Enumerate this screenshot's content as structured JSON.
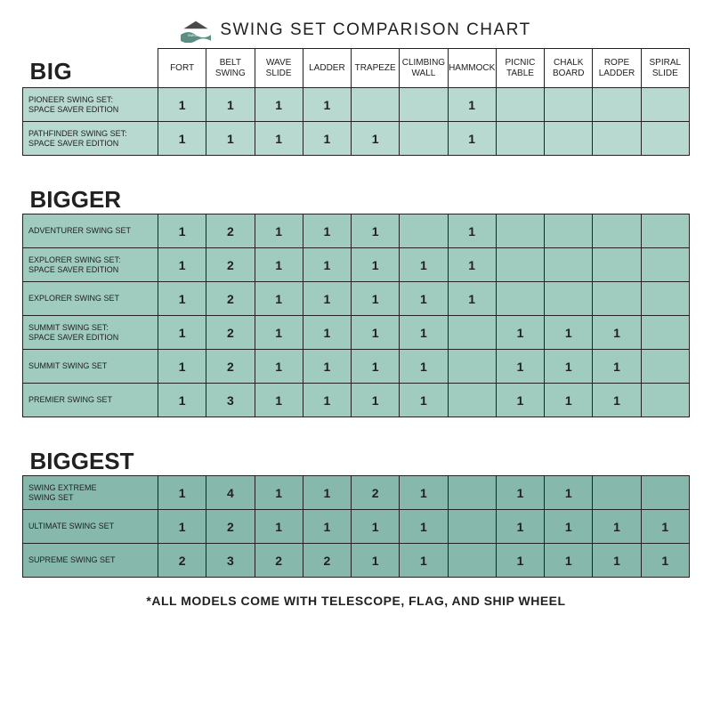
{
  "title": "SWING SET COMPARISON CHART",
  "footnote": "*ALL MODELS COME WITH TELESCOPE, FLAG, AND SHIP WHEEL",
  "columns": [
    "FORT",
    "BELT SWING",
    "WAVE SLIDE",
    "LADDER",
    "TRAPEZE",
    "CLIMBING WALL",
    "HAMMOCK",
    "PICNIC TABLE",
    "CHALK BOARD",
    "ROPE LADDER",
    "SPIRAL SLIDE"
  ],
  "sections": [
    {
      "label": "BIG",
      "row_bg": "#b8d9cf",
      "rows": [
        {
          "name": "PIONEER SWING SET: SPACE SAVER EDITION",
          "vals": [
            "1",
            "1",
            "1",
            "1",
            "",
            "",
            "1",
            "",
            "",
            "",
            ""
          ]
        },
        {
          "name": "PATHFINDER SWING SET: SPACE SAVER EDITION",
          "vals": [
            "1",
            "1",
            "1",
            "1",
            "1",
            "",
            "1",
            "",
            "",
            "",
            ""
          ]
        }
      ]
    },
    {
      "label": "BIGGER",
      "row_bg": "#a0ccc0",
      "rows": [
        {
          "name": "ADVENTURER SWING SET",
          "vals": [
            "1",
            "2",
            "1",
            "1",
            "1",
            "",
            "1",
            "",
            "",
            "",
            ""
          ]
        },
        {
          "name": "EXPLORER SWING SET: SPACE SAVER EDITION",
          "vals": [
            "1",
            "2",
            "1",
            "1",
            "1",
            "1",
            "1",
            "",
            "",
            "",
            ""
          ]
        },
        {
          "name": "EXPLORER SWING SET",
          "vals": [
            "1",
            "2",
            "1",
            "1",
            "1",
            "1",
            "1",
            "",
            "",
            "",
            ""
          ]
        },
        {
          "name": "SUMMIT SWING SET: SPACE SAVER EDITION",
          "vals": [
            "1",
            "2",
            "1",
            "1",
            "1",
            "1",
            "",
            "1",
            "1",
            "1",
            ""
          ]
        },
        {
          "name": "SUMMIT SWING SET",
          "vals": [
            "1",
            "2",
            "1",
            "1",
            "1",
            "1",
            "",
            "1",
            "1",
            "1",
            ""
          ]
        },
        {
          "name": "PREMIER SWING SET",
          "vals": [
            "1",
            "3",
            "1",
            "1",
            "1",
            "1",
            "",
            "1",
            "1",
            "1",
            ""
          ]
        }
      ]
    },
    {
      "label": "BIGGEST",
      "row_bg": "#86b9ac",
      "rows": [
        {
          "name": "SWING EXTREME SWING SET",
          "vals": [
            "1",
            "4",
            "1",
            "1",
            "2",
            "1",
            "",
            "1",
            "1",
            "",
            ""
          ]
        },
        {
          "name": "ULTIMATE SWING SET",
          "vals": [
            "1",
            "2",
            "1",
            "1",
            "1",
            "1",
            "",
            "1",
            "1",
            "1",
            "1"
          ]
        },
        {
          "name": "SUPREME SWING SET",
          "vals": [
            "2",
            "3",
            "2",
            "2",
            "1",
            "1",
            "",
            "1",
            "1",
            "1",
            "1"
          ]
        }
      ]
    }
  ],
  "style": {
    "border_color": "#222222",
    "text_color": "#212121",
    "logo_badge": "#5b8f83",
    "logo_roof": "#4a4a4a"
  }
}
